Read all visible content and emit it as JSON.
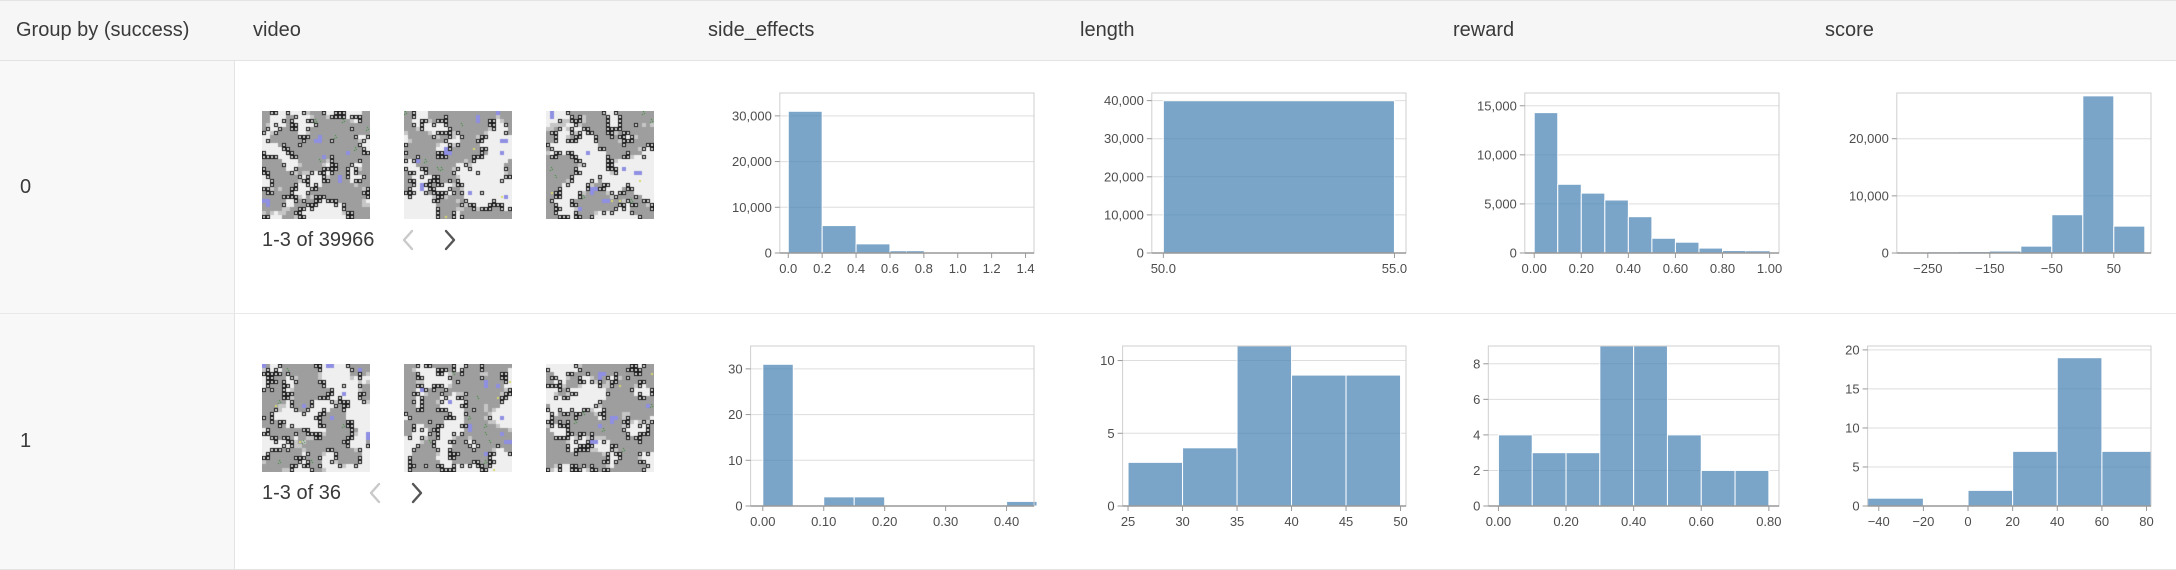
{
  "table": {
    "columns": [
      {
        "label": "Group by (success)"
      },
      {
        "label": "video"
      },
      {
        "label": "side_effects"
      },
      {
        "label": "length"
      },
      {
        "label": "reward"
      },
      {
        "label": "score"
      }
    ]
  },
  "rows": [
    {
      "group_label": "0",
      "video": {
        "pagination_text": "1-3 of 39966",
        "thumbnail_count": 3,
        "prev_enabled": false,
        "next_enabled": true
      }
    },
    {
      "group_label": "1",
      "video": {
        "pagination_text": "1-3 of 36",
        "thumbnail_count": 3,
        "prev_enabled": false,
        "next_enabled": true
      }
    }
  ],
  "icons": {
    "prev": "chevron-left-icon",
    "next": "chevron-right-icon"
  },
  "colors": {
    "bar_fill": "rgba(70,130,180,0.72)",
    "bar_fill_flat": "#7ea8cb",
    "header_bg": "#f6f6f6",
    "group_col_bg": "#f8f8f8",
    "border": "#e3e3e3",
    "grid_line": "#dddddd",
    "axis_line": "#999999",
    "tick_text": "#4d4d4d",
    "text": "#3a3a3a",
    "chevron_disabled": "#c9c9c9",
    "chevron_enabled": "#555555"
  },
  "chart_data": [
    {
      "type": "bar",
      "row_group": "0",
      "column": "side_effects",
      "xlim": [
        -0.05,
        1.45
      ],
      "ylim": [
        0,
        35000
      ],
      "grid": true,
      "legend": "none",
      "bars": [
        [
          0.0,
          0.2,
          31000
        ],
        [
          0.2,
          0.4,
          6000
        ],
        [
          0.4,
          0.6,
          2000
        ],
        [
          0.6,
          0.7,
          500
        ],
        [
          0.7,
          0.8,
          400
        ],
        [
          0.8,
          1.0,
          80
        ],
        [
          1.0,
          1.45,
          40
        ]
      ],
      "xtick_values": [
        0.0,
        0.2,
        0.4,
        0.6,
        0.8,
        1.0,
        1.2,
        1.4
      ],
      "xtick_labels": [
        "0.0",
        "0.2",
        "0.4",
        "0.6",
        "0.8",
        "1.0",
        "1.2",
        "1.4"
      ],
      "ytick_values": [
        0,
        10000,
        20000,
        30000
      ],
      "ytick_labels": [
        "0",
        "10,000",
        "20,000",
        "30,000"
      ]
    },
    {
      "type": "bar",
      "row_group": "0",
      "column": "length",
      "xlim": [
        49.75,
        55.25
      ],
      "ylim": [
        0,
        42000
      ],
      "grid": true,
      "legend": "none",
      "bars": [
        [
          50,
          55,
          39966
        ]
      ],
      "xtick_values": [
        50,
        55
      ],
      "xtick_labels": [
        "50.0",
        "55.0"
      ],
      "ytick_values": [
        0,
        10000,
        20000,
        30000,
        40000
      ],
      "ytick_labels": [
        "0",
        "10,000",
        "20,000",
        "30,000",
        "40,000"
      ]
    },
    {
      "type": "bar",
      "row_group": "0",
      "column": "reward",
      "xlim": [
        -0.04,
        1.04
      ],
      "ylim": [
        0,
        16300
      ],
      "grid": true,
      "legend": "none",
      "bars": [
        [
          0,
          0.1,
          14300
        ],
        [
          0.1,
          0.2,
          7000
        ],
        [
          0.2,
          0.3,
          6100
        ],
        [
          0.3,
          0.4,
          5400
        ],
        [
          0.4,
          0.5,
          3700
        ],
        [
          0.5,
          0.6,
          1500
        ],
        [
          0.6,
          0.7,
          1100
        ],
        [
          0.7,
          0.8,
          500
        ],
        [
          0.8,
          0.9,
          250
        ],
        [
          0.9,
          1.0,
          180
        ]
      ],
      "xtick_values": [
        0,
        0.2,
        0.4,
        0.6,
        0.8,
        1.0
      ],
      "xtick_labels": [
        "0.00",
        "0.20",
        "0.40",
        "0.60",
        "0.80",
        "1.00"
      ],
      "ytick_values": [
        0,
        5000,
        10000,
        15000
      ],
      "ytick_labels": [
        "0",
        "5,000",
        "10,000",
        "15,000"
      ]
    },
    {
      "type": "bar",
      "row_group": "0",
      "column": "score",
      "xlim": [
        -300,
        110
      ],
      "ylim": [
        0,
        28000
      ],
      "grid": true,
      "legend": "none",
      "bars": [
        [
          -300,
          -250,
          60
        ],
        [
          -250,
          -200,
          120
        ],
        [
          -200,
          -150,
          160
        ],
        [
          -150,
          -100,
          260
        ],
        [
          -100,
          -50,
          1200
        ],
        [
          -50,
          0,
          6700
        ],
        [
          0,
          50,
          27500
        ],
        [
          50,
          100,
          4700
        ]
      ],
      "xtick_values": [
        -250,
        -150,
        -50,
        50
      ],
      "xtick_labels": [
        "−250",
        "−150",
        "−50",
        "50"
      ],
      "ytick_values": [
        0,
        10000,
        20000
      ],
      "ytick_labels": [
        "0",
        "10,000",
        "20,000"
      ]
    },
    {
      "type": "bar",
      "row_group": "1",
      "column": "side_effects",
      "xlim": [
        -0.02,
        0.445
      ],
      "ylim": [
        0,
        35
      ],
      "grid": true,
      "legend": "none",
      "bars": [
        [
          0,
          0.05,
          31
        ],
        [
          0.1,
          0.15,
          2
        ],
        [
          0.15,
          0.2,
          2
        ],
        [
          0.4,
          0.45,
          1
        ]
      ],
      "xtick_values": [
        0,
        0.1,
        0.2,
        0.3,
        0.4
      ],
      "xtick_labels": [
        "0.00",
        "0.10",
        "0.20",
        "0.30",
        "0.40"
      ],
      "ytick_values": [
        0,
        10,
        20,
        30
      ],
      "ytick_labels": [
        "0",
        "10",
        "20",
        "30"
      ]
    },
    {
      "type": "bar",
      "row_group": "1",
      "column": "length",
      "xlim": [
        24.5,
        50.5
      ],
      "ylim": [
        0,
        11
      ],
      "grid": true,
      "legend": "none",
      "bars": [
        [
          25,
          30,
          3
        ],
        [
          30,
          35,
          4
        ],
        [
          35,
          40,
          11
        ],
        [
          40,
          45,
          9
        ],
        [
          45,
          50,
          9
        ]
      ],
      "xtick_values": [
        25,
        30,
        35,
        40,
        45,
        50
      ],
      "xtick_labels": [
        "25",
        "30",
        "35",
        "40",
        "45",
        "50"
      ],
      "ytick_values": [
        0,
        5,
        10
      ],
      "ytick_labels": [
        "0",
        "5",
        "10"
      ]
    },
    {
      "type": "bar",
      "row_group": "1",
      "column": "reward",
      "xlim": [
        -0.03,
        0.83
      ],
      "ylim": [
        0,
        9
      ],
      "grid": true,
      "legend": "none",
      "bars": [
        [
          0,
          0.1,
          4
        ],
        [
          0.1,
          0.2,
          3
        ],
        [
          0.2,
          0.3,
          3
        ],
        [
          0.3,
          0.4,
          9
        ],
        [
          0.4,
          0.5,
          9
        ],
        [
          0.5,
          0.6,
          4
        ],
        [
          0.6,
          0.7,
          2
        ],
        [
          0.7,
          0.8,
          2
        ]
      ],
      "xtick_values": [
        0,
        0.2,
        0.4,
        0.6,
        0.8
      ],
      "xtick_labels": [
        "0.00",
        "0.20",
        "0.40",
        "0.60",
        "0.80"
      ],
      "ytick_values": [
        0,
        2,
        4,
        6,
        8
      ],
      "ytick_labels": [
        "0",
        "2",
        "4",
        "6",
        "8"
      ]
    },
    {
      "type": "bar",
      "row_group": "1",
      "column": "score",
      "xlim": [
        -45,
        82
      ],
      "ylim": [
        0,
        20.5
      ],
      "grid": true,
      "legend": "none",
      "bars": [
        [
          -45,
          -20,
          1
        ],
        [
          0,
          20,
          2
        ],
        [
          20,
          40,
          7
        ],
        [
          40,
          60,
          19
        ],
        [
          60,
          82,
          7
        ]
      ],
      "xtick_values": [
        -40,
        -20,
        0,
        20,
        40,
        60,
        80
      ],
      "xtick_labels": [
        "−40",
        "−20",
        "0",
        "20",
        "40",
        "60",
        "80"
      ],
      "ytick_values": [
        0,
        5,
        10,
        15,
        20
      ],
      "ytick_labels": [
        "0",
        "5",
        "10",
        "15",
        "20"
      ]
    }
  ]
}
